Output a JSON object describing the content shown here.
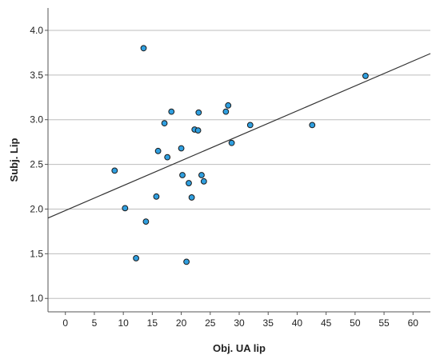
{
  "chart_data": {
    "type": "scatter",
    "xlabel": "Obj. UA lip",
    "ylabel": "Subj. Lip",
    "xlim": [
      -3,
      63
    ],
    "ylim": [
      0.85,
      4.25
    ],
    "x_ticks": [
      0,
      5,
      10,
      15,
      20,
      25,
      30,
      35,
      40,
      45,
      50,
      55,
      60
    ],
    "y_ticks": [
      1.0,
      1.5,
      2.0,
      2.5,
      3.0,
      3.5,
      4.0
    ],
    "grid": "horizontal",
    "legend": "none",
    "points": [
      {
        "x": 13.5,
        "y": 3.8
      },
      {
        "x": 8.5,
        "y": 2.43
      },
      {
        "x": 10.3,
        "y": 2.01
      },
      {
        "x": 12.2,
        "y": 1.45
      },
      {
        "x": 13.9,
        "y": 1.86
      },
      {
        "x": 15.7,
        "y": 2.14
      },
      {
        "x": 16.0,
        "y": 2.65
      },
      {
        "x": 17.1,
        "y": 2.96
      },
      {
        "x": 17.6,
        "y": 2.58
      },
      {
        "x": 18.3,
        "y": 3.09
      },
      {
        "x": 20.0,
        "y": 2.68
      },
      {
        "x": 20.2,
        "y": 2.38
      },
      {
        "x": 20.9,
        "y": 1.41
      },
      {
        "x": 21.3,
        "y": 2.29
      },
      {
        "x": 21.8,
        "y": 2.13
      },
      {
        "x": 22.3,
        "y": 2.89
      },
      {
        "x": 22.9,
        "y": 2.88
      },
      {
        "x": 23.0,
        "y": 3.08
      },
      {
        "x": 23.5,
        "y": 2.38
      },
      {
        "x": 23.9,
        "y": 2.31
      },
      {
        "x": 27.7,
        "y": 3.09
      },
      {
        "x": 28.1,
        "y": 3.16
      },
      {
        "x": 28.7,
        "y": 2.74
      },
      {
        "x": 31.9,
        "y": 2.94
      },
      {
        "x": 42.6,
        "y": 2.94
      },
      {
        "x": 51.8,
        "y": 3.49
      }
    ],
    "fit_line": {
      "x": [
        -3,
        63
      ],
      "y": [
        1.9,
        3.74
      ]
    },
    "colors": {
      "point_fill": "#2f9fe0",
      "point_stroke": "#1a1a1a",
      "line": "#333333",
      "grid": "#bdbdbd",
      "axis": "#555555"
    }
  }
}
